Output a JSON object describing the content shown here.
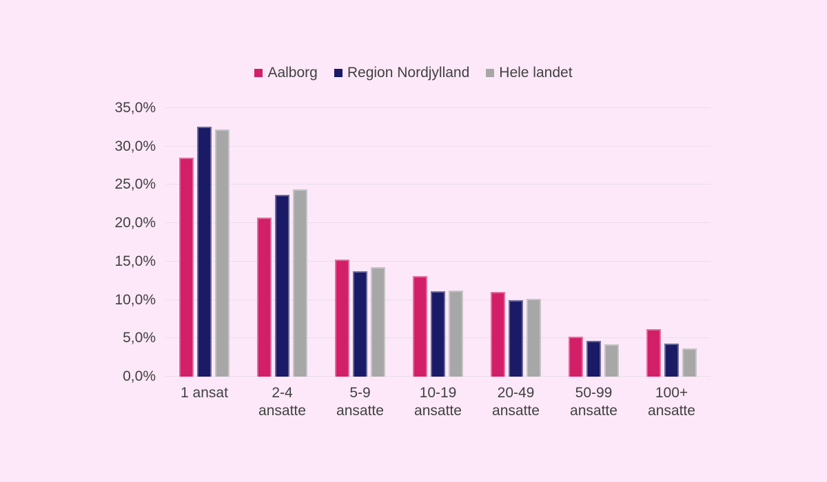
{
  "colors": {
    "background": "#FCE8F8",
    "gridline": "#E9DBEB",
    "axis_text": "#414141",
    "legend_text": "#414141"
  },
  "chart_data": {
    "type": "bar",
    "title": "",
    "xlabel": "",
    "ylabel": "",
    "categories": [
      "1 ansat",
      "2-4 ansatte",
      "5-9 ansatte",
      "10-19 ansatte",
      "20-49 ansatte",
      "50-99 ansatte",
      "100+ ansatte"
    ],
    "series": [
      {
        "name": "Aalborg",
        "color": "#D31E68",
        "values": [
          28.5,
          20.7,
          15.3,
          13.1,
          11.0,
          5.2,
          6.2
        ]
      },
      {
        "name": "Region Nordjylland",
        "color": "#1A1A66",
        "values": [
          32.6,
          23.7,
          13.7,
          11.1,
          10.0,
          4.7,
          4.3
        ]
      },
      {
        "name": "Hele landet",
        "color": "#A7A7A7",
        "values": [
          32.2,
          24.4,
          14.3,
          11.2,
          10.1,
          4.2,
          3.7
        ]
      }
    ],
    "ylim": [
      0,
      35
    ],
    "ytick_step": 5,
    "ytick_labels": [
      "0,0%",
      "5,0%",
      "10,0%",
      "15,0%",
      "20,0%",
      "25,0%",
      "30,0%",
      "35,0%"
    ],
    "grid": true,
    "legend_position": "top"
  }
}
